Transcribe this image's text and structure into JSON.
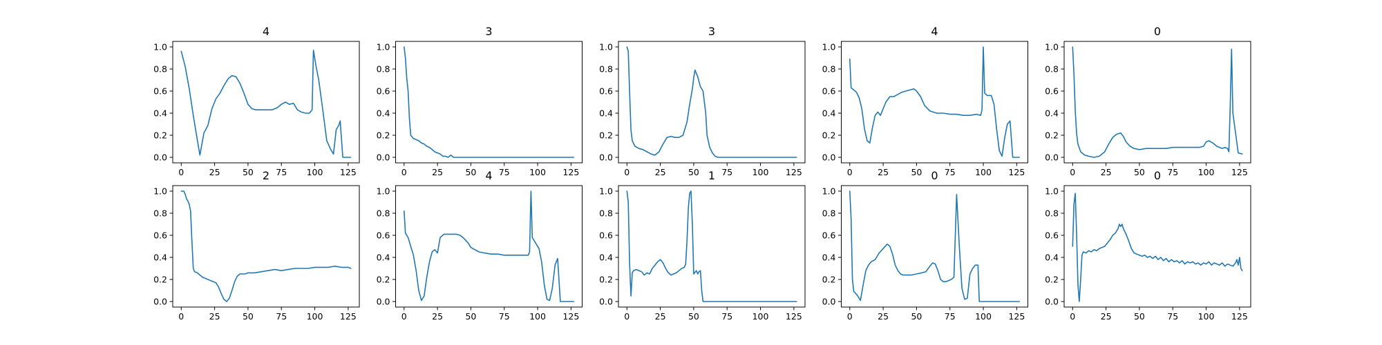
{
  "chart_data": [
    {
      "type": "line",
      "title": "4",
      "xlim": [
        -6.35,
        133.35
      ],
      "ylim": [
        -0.05,
        1.05
      ],
      "xticks": [
        0,
        25,
        50,
        75,
        100,
        125
      ],
      "yticks": [
        0.0,
        0.2,
        0.4,
        0.6,
        0.8,
        1.0
      ],
      "x": [
        0,
        3,
        6,
        9,
        12,
        14,
        17,
        20,
        23,
        26,
        29,
        32,
        35,
        38,
        41,
        44,
        47,
        50,
        53,
        56,
        60,
        64,
        68,
        72,
        75,
        78,
        81,
        84,
        87,
        90,
        93,
        96,
        98,
        99,
        101,
        103,
        106,
        109,
        112,
        114,
        116,
        118,
        119,
        121,
        124,
        127
      ],
      "y": [
        0.96,
        0.82,
        0.62,
        0.38,
        0.16,
        0.02,
        0.22,
        0.29,
        0.44,
        0.53,
        0.58,
        0.65,
        0.71,
        0.74,
        0.73,
        0.67,
        0.58,
        0.48,
        0.44,
        0.43,
        0.43,
        0.43,
        0.43,
        0.45,
        0.48,
        0.5,
        0.48,
        0.49,
        0.43,
        0.41,
        0.4,
        0.4,
        0.43,
        0.97,
        0.82,
        0.7,
        0.43,
        0.15,
        0.07,
        0.03,
        0.25,
        0.29,
        0.33,
        0.0,
        0.0,
        0.0
      ]
    },
    {
      "type": "line",
      "title": "3",
      "xlim": [
        -6.35,
        133.35
      ],
      "ylim": [
        -0.05,
        1.05
      ],
      "xticks": [
        0,
        25,
        50,
        75,
        100,
        125
      ],
      "yticks": [
        0.0,
        0.2,
        0.4,
        0.6,
        0.8,
        1.0
      ],
      "x": [
        0,
        1,
        2,
        3,
        4,
        5,
        7,
        9,
        11,
        13,
        15,
        17,
        19,
        21,
        23,
        25,
        27,
        29,
        31,
        33,
        35,
        37,
        40,
        60,
        80,
        100,
        127
      ],
      "y": [
        1.0,
        0.9,
        0.72,
        0.6,
        0.35,
        0.2,
        0.17,
        0.16,
        0.15,
        0.13,
        0.12,
        0.1,
        0.09,
        0.07,
        0.05,
        0.04,
        0.03,
        0.01,
        0.01,
        0.0,
        0.02,
        0.0,
        0.0,
        0.0,
        0.0,
        0.0,
        0.0
      ]
    },
    {
      "type": "line",
      "title": "3",
      "xlim": [
        -6.35,
        133.35
      ],
      "ylim": [
        -0.05,
        1.05
      ],
      "xticks": [
        0,
        25,
        50,
        75,
        100,
        125
      ],
      "yticks": [
        0.0,
        0.2,
        0.4,
        0.6,
        0.8,
        1.0
      ],
      "x": [
        0,
        1,
        2,
        3,
        4,
        6,
        9,
        12,
        15,
        18,
        21,
        24,
        27,
        30,
        33,
        36,
        39,
        42,
        45,
        47,
        49,
        50,
        51,
        53,
        55,
        57,
        59,
        60,
        62,
        64,
        66,
        68,
        70,
        80,
        100,
        127
      ],
      "y": [
        1.0,
        0.96,
        0.6,
        0.25,
        0.15,
        0.1,
        0.08,
        0.07,
        0.05,
        0.03,
        0.02,
        0.05,
        0.12,
        0.18,
        0.19,
        0.18,
        0.18,
        0.2,
        0.32,
        0.48,
        0.62,
        0.72,
        0.79,
        0.73,
        0.64,
        0.6,
        0.4,
        0.2,
        0.09,
        0.04,
        0.01,
        0.0,
        0.0,
        0.0,
        0.0,
        0.0
      ]
    },
    {
      "type": "line",
      "title": "4",
      "xlim": [
        -6.35,
        133.35
      ],
      "ylim": [
        -0.05,
        1.05
      ],
      "xticks": [
        0,
        25,
        50,
        75,
        100,
        125
      ],
      "yticks": [
        0.0,
        0.2,
        0.4,
        0.6,
        0.8,
        1.0
      ],
      "x": [
        0,
        1,
        3,
        5,
        7,
        9,
        11,
        13,
        15,
        17,
        19,
        21,
        23,
        25,
        27,
        30,
        33,
        36,
        39,
        42,
        45,
        48,
        50,
        53,
        56,
        60,
        65,
        70,
        75,
        80,
        85,
        90,
        95,
        98,
        99,
        100,
        101,
        103,
        106,
        108,
        110,
        112,
        114,
        116,
        118,
        120,
        122,
        124,
        127
      ],
      "y": [
        0.89,
        0.63,
        0.61,
        0.59,
        0.54,
        0.44,
        0.26,
        0.15,
        0.13,
        0.27,
        0.38,
        0.41,
        0.38,
        0.44,
        0.5,
        0.55,
        0.55,
        0.57,
        0.59,
        0.6,
        0.61,
        0.62,
        0.6,
        0.55,
        0.47,
        0.42,
        0.4,
        0.4,
        0.39,
        0.39,
        0.38,
        0.38,
        0.39,
        0.38,
        0.43,
        1.0,
        0.58,
        0.56,
        0.56,
        0.48,
        0.25,
        0.06,
        0.01,
        0.18,
        0.3,
        0.33,
        0.0,
        0.0,
        0.0
      ]
    },
    {
      "type": "line",
      "title": "0",
      "xlim": [
        -6.35,
        133.35
      ],
      "ylim": [
        -0.05,
        1.05
      ],
      "xticks": [
        0,
        25,
        50,
        75,
        100,
        125
      ],
      "yticks": [
        0.0,
        0.2,
        0.4,
        0.6,
        0.8,
        1.0
      ],
      "x": [
        0,
        1,
        2,
        3,
        4,
        6,
        9,
        12,
        16,
        20,
        24,
        27,
        30,
        33,
        36,
        38,
        40,
        43,
        46,
        50,
        55,
        60,
        65,
        70,
        75,
        80,
        85,
        90,
        95,
        98,
        100,
        102,
        105,
        108,
        110,
        112,
        114,
        116,
        117,
        118,
        119,
        120,
        122,
        124,
        127
      ],
      "y": [
        1.0,
        0.75,
        0.42,
        0.21,
        0.12,
        0.05,
        0.02,
        0.01,
        0.0,
        0.01,
        0.05,
        0.12,
        0.18,
        0.21,
        0.22,
        0.19,
        0.14,
        0.1,
        0.08,
        0.07,
        0.08,
        0.08,
        0.08,
        0.08,
        0.09,
        0.09,
        0.09,
        0.09,
        0.09,
        0.1,
        0.14,
        0.15,
        0.13,
        0.1,
        0.09,
        0.08,
        0.09,
        0.08,
        0.05,
        0.45,
        0.98,
        0.4,
        0.22,
        0.04,
        0.03
      ]
    },
    {
      "type": "line",
      "title": "2",
      "xlim": [
        -6.35,
        133.35
      ],
      "ylim": [
        -0.05,
        1.05
      ],
      "xticks": [
        0,
        25,
        50,
        75,
        100,
        125
      ],
      "yticks": [
        0.0,
        0.2,
        0.4,
        0.6,
        0.8,
        1.0
      ],
      "x": [
        0,
        2,
        3,
        4,
        5,
        6,
        7,
        8,
        9,
        10,
        12,
        14,
        16,
        18,
        20,
        22,
        24,
        26,
        28,
        30,
        32,
        34,
        36,
        38,
        40,
        42,
        44,
        48,
        50,
        55,
        60,
        65,
        70,
        75,
        80,
        85,
        90,
        95,
        100,
        105,
        110,
        115,
        120,
        125,
        127
      ],
      "y": [
        1.0,
        1.0,
        0.97,
        0.93,
        0.91,
        0.88,
        0.82,
        0.55,
        0.3,
        0.27,
        0.26,
        0.24,
        0.22,
        0.21,
        0.2,
        0.19,
        0.18,
        0.17,
        0.13,
        0.07,
        0.02,
        0.0,
        0.03,
        0.1,
        0.18,
        0.23,
        0.25,
        0.25,
        0.26,
        0.26,
        0.27,
        0.28,
        0.29,
        0.28,
        0.29,
        0.3,
        0.3,
        0.3,
        0.31,
        0.31,
        0.31,
        0.32,
        0.31,
        0.31,
        0.3
      ]
    },
    {
      "type": "line",
      "title": "4",
      "xlim": [
        -6.35,
        133.35
      ],
      "ylim": [
        -0.05,
        1.05
      ],
      "xticks": [
        0,
        25,
        50,
        75,
        100,
        125
      ],
      "yticks": [
        0.0,
        0.2,
        0.4,
        0.6,
        0.8,
        1.0
      ],
      "x": [
        0,
        1,
        3,
        5,
        7,
        9,
        11,
        13,
        15,
        17,
        19,
        21,
        23,
        25,
        27,
        30,
        33,
        36,
        39,
        42,
        45,
        48,
        50,
        53,
        56,
        60,
        65,
        70,
        75,
        80,
        85,
        90,
        93,
        94,
        95,
        96,
        97,
        99,
        101,
        103,
        105,
        107,
        109,
        111,
        113,
        115,
        117,
        120,
        127
      ],
      "y": [
        0.82,
        0.62,
        0.58,
        0.5,
        0.42,
        0.28,
        0.1,
        0.01,
        0.05,
        0.22,
        0.36,
        0.45,
        0.47,
        0.44,
        0.58,
        0.61,
        0.61,
        0.61,
        0.61,
        0.6,
        0.57,
        0.53,
        0.49,
        0.47,
        0.45,
        0.44,
        0.43,
        0.43,
        0.42,
        0.42,
        0.42,
        0.42,
        0.42,
        0.45,
        1.0,
        0.58,
        0.56,
        0.52,
        0.48,
        0.36,
        0.15,
        0.02,
        0.01,
        0.12,
        0.33,
        0.39,
        0.0,
        0.0,
        0.0
      ]
    },
    {
      "type": "line",
      "title": "1",
      "xlim": [
        -6.35,
        133.35
      ],
      "ylim": [
        -0.05,
        1.05
      ],
      "xticks": [
        0,
        25,
        50,
        75,
        100,
        125
      ],
      "yticks": [
        0.0,
        0.2,
        0.4,
        0.6,
        0.8,
        1.0
      ],
      "x": [
        0,
        1,
        2,
        3,
        4,
        5,
        7,
        9,
        11,
        13,
        15,
        17,
        19,
        21,
        23,
        25,
        27,
        29,
        31,
        33,
        35,
        37,
        39,
        41,
        43,
        44,
        45,
        46,
        47,
        48,
        49,
        50,
        52,
        53,
        54,
        55,
        56,
        57,
        60,
        80,
        100,
        127
      ],
      "y": [
        1.0,
        0.9,
        0.35,
        0.05,
        0.26,
        0.28,
        0.29,
        0.28,
        0.27,
        0.24,
        0.26,
        0.25,
        0.3,
        0.33,
        0.36,
        0.38,
        0.35,
        0.3,
        0.26,
        0.24,
        0.25,
        0.26,
        0.28,
        0.3,
        0.31,
        0.34,
        0.55,
        0.85,
        0.98,
        1.0,
        0.7,
        0.25,
        0.28,
        0.25,
        0.27,
        0.28,
        0.1,
        0.0,
        0.0,
        0.0,
        0.0,
        0.0
      ]
    },
    {
      "type": "line",
      "title": "0",
      "xlim": [
        -6.35,
        133.35
      ],
      "ylim": [
        -0.05,
        1.05
      ],
      "xticks": [
        0,
        25,
        50,
        75,
        100,
        125
      ],
      "yticks": [
        0.0,
        0.2,
        0.4,
        0.6,
        0.8,
        1.0
      ],
      "x": [
        0,
        1,
        2,
        3,
        4,
        6,
        8,
        10,
        12,
        14,
        16,
        19,
        22,
        25,
        28,
        30,
        32,
        34,
        36,
        38,
        40,
        43,
        46,
        50,
        54,
        57,
        60,
        62,
        64,
        66,
        68,
        70,
        72,
        74,
        76,
        78,
        79,
        80,
        82,
        84,
        86,
        88,
        90,
        92,
        94,
        96,
        97,
        100,
        110,
        127
      ],
      "y": [
        1.0,
        0.75,
        0.2,
        0.09,
        0.08,
        0.05,
        0.01,
        0.15,
        0.28,
        0.33,
        0.36,
        0.38,
        0.44,
        0.48,
        0.52,
        0.5,
        0.43,
        0.33,
        0.28,
        0.25,
        0.24,
        0.24,
        0.24,
        0.25,
        0.26,
        0.27,
        0.32,
        0.35,
        0.34,
        0.28,
        0.2,
        0.18,
        0.18,
        0.19,
        0.2,
        0.22,
        0.6,
        0.97,
        0.5,
        0.12,
        0.02,
        0.03,
        0.25,
        0.3,
        0.33,
        0.33,
        0.0,
        0.0,
        0.0,
        0.0
      ]
    },
    {
      "type": "line",
      "title": "0",
      "xlim": [
        -6.35,
        133.35
      ],
      "ylim": [
        -0.05,
        1.05
      ],
      "xticks": [
        0,
        25,
        50,
        75,
        100,
        125
      ],
      "yticks": [
        0.0,
        0.2,
        0.4,
        0.6,
        0.8,
        1.0
      ],
      "x": [
        0,
        1,
        2,
        3,
        4,
        5,
        6,
        7,
        8,
        10,
        12,
        14,
        16,
        18,
        20,
        22,
        24,
        26,
        28,
        30,
        32,
        34,
        35,
        36,
        37,
        38,
        40,
        42,
        44,
        46,
        48,
        50,
        52,
        54,
        56,
        58,
        60,
        62,
        64,
        66,
        68,
        70,
        72,
        74,
        76,
        78,
        80,
        82,
        84,
        86,
        88,
        90,
        92,
        94,
        96,
        98,
        100,
        102,
        104,
        106,
        108,
        110,
        112,
        114,
        116,
        118,
        120,
        122,
        123,
        124,
        125,
        126,
        127
      ],
      "y": [
        0.5,
        0.88,
        0.98,
        0.6,
        0.15,
        0.0,
        0.2,
        0.42,
        0.45,
        0.44,
        0.46,
        0.45,
        0.47,
        0.46,
        0.48,
        0.49,
        0.5,
        0.53,
        0.56,
        0.6,
        0.62,
        0.66,
        0.7,
        0.68,
        0.7,
        0.66,
        0.61,
        0.55,
        0.48,
        0.44,
        0.43,
        0.42,
        0.41,
        0.42,
        0.4,
        0.41,
        0.39,
        0.41,
        0.38,
        0.4,
        0.37,
        0.39,
        0.36,
        0.38,
        0.36,
        0.37,
        0.35,
        0.37,
        0.34,
        0.36,
        0.35,
        0.36,
        0.34,
        0.35,
        0.33,
        0.35,
        0.34,
        0.36,
        0.33,
        0.35,
        0.34,
        0.33,
        0.35,
        0.32,
        0.34,
        0.33,
        0.32,
        0.35,
        0.38,
        0.33,
        0.4,
        0.3,
        0.28
      ]
    }
  ]
}
